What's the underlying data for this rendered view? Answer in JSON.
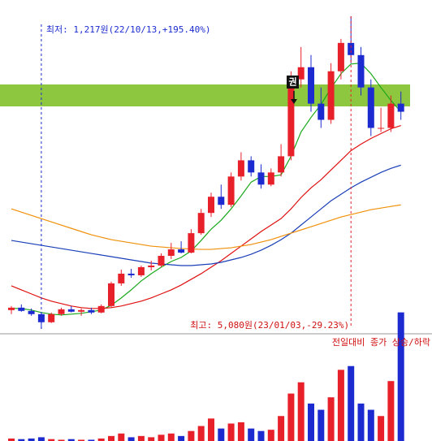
{
  "chart_data": {
    "type": "candlestick",
    "low_label": "최저: 1,217원(22/10/13,+195.40%)",
    "high_label": "최고: 5,080원(23/01/03,-29.23%)",
    "badge": "권",
    "volume_legend": "전일대비 종가 상승/하락",
    "up_color": "#e8202a",
    "down_color": "#1c2bd0",
    "ylim": [
      1100,
      5200
    ],
    "vlim": [
      0,
      800
    ],
    "open": [
      1450,
      1480,
      1440,
      1400,
      1300,
      1400,
      1460,
      1430,
      1450,
      1420,
      1500,
      1780,
      1900,
      1880,
      1980,
      2000,
      2120,
      2200,
      2160,
      2400,
      2650,
      2850,
      2750,
      3100,
      3300,
      3150,
      3000,
      3150,
      3350,
      4300,
      4450,
      4000,
      3800,
      4400,
      4750,
      4600,
      4200,
      3700,
      3700,
      4000
    ],
    "high": [
      1500,
      1520,
      1470,
      1420,
      1420,
      1480,
      1500,
      1470,
      1480,
      1520,
      1800,
      1950,
      1960,
      2000,
      2060,
      2150,
      2280,
      2300,
      2450,
      2700,
      2900,
      3000,
      3150,
      3400,
      3350,
      3250,
      3200,
      3500,
      4400,
      4700,
      4600,
      4200,
      4500,
      4800,
      5080,
      4700,
      4300,
      3950,
      4100,
      4150
    ],
    "low": [
      1400,
      1430,
      1380,
      1217,
      1290,
      1380,
      1420,
      1380,
      1400,
      1410,
      1480,
      1750,
      1850,
      1860,
      1940,
      1980,
      2080,
      2150,
      2150,
      2380,
      2600,
      2700,
      2720,
      3050,
      3100,
      2950,
      2980,
      3100,
      3300,
      4200,
      3900,
      3700,
      3750,
      4300,
      4500,
      4100,
      3600,
      3650,
      3650,
      3800
    ],
    "close": [
      1480,
      1440,
      1400,
      1300,
      1400,
      1460,
      1430,
      1450,
      1420,
      1500,
      1780,
      1900,
      1880,
      1980,
      2000,
      2120,
      2200,
      2160,
      2400,
      2650,
      2850,
      2750,
      3100,
      3300,
      3150,
      3000,
      3150,
      3350,
      4300,
      4450,
      4000,
      3800,
      4400,
      4750,
      4600,
      4200,
      3700,
      3700,
      4000,
      3900
    ],
    "volume": [
      20,
      15,
      20,
      30,
      15,
      10,
      15,
      10,
      10,
      20,
      40,
      60,
      30,
      40,
      30,
      50,
      60,
      40,
      80,
      120,
      180,
      100,
      140,
      150,
      100,
      80,
      90,
      200,
      380,
      470,
      300,
      250,
      350,
      570,
      600,
      300,
      250,
      200,
      480,
      1030
    ],
    "moving_averages": [
      {
        "color": "#1aa81a",
        "values": [
          1470,
          1470,
          1450,
          1420,
          1400,
          1390,
          1400,
          1410,
          1430,
          1450,
          1510,
          1600,
          1700,
          1810,
          1900,
          1980,
          2050,
          2100,
          2180,
          2310,
          2450,
          2560,
          2700,
          2860,
          3030,
          3100,
          3100,
          3120,
          3350,
          3650,
          3830,
          3990,
          4190,
          4370,
          4490,
          4500,
          4370,
          4200,
          4040,
          3900
        ]
      },
      {
        "color": "#e01010",
        "values": [
          1750,
          1700,
          1650,
          1600,
          1560,
          1530,
          1500,
          1480,
          1470,
          1470,
          1480,
          1500,
          1530,
          1560,
          1600,
          1650,
          1700,
          1760,
          1830,
          1900,
          1980,
          2060,
          2150,
          2240,
          2330,
          2420,
          2500,
          2580,
          2700,
          2840,
          2960,
          3060,
          3180,
          3300,
          3420,
          3500,
          3570,
          3630,
          3690,
          3730
        ]
      },
      {
        "color": "#1a3fb8",
        "values": [
          2310,
          2290,
          2270,
          2250,
          2230,
          2210,
          2190,
          2170,
          2150,
          2130,
          2110,
          2090,
          2070,
          2050,
          2030,
          2020,
          2010,
          2000,
          2000,
          2010,
          2020,
          2040,
          2070,
          2100,
          2140,
          2190,
          2250,
          2320,
          2400,
          2500,
          2600,
          2700,
          2800,
          2880,
          2960,
          3030,
          3090,
          3150,
          3200,
          3240
        ]
      },
      {
        "color": "#f0900a",
        "values": [
          2700,
          2660,
          2620,
          2580,
          2540,
          2500,
          2460,
          2420,
          2380,
          2350,
          2320,
          2300,
          2280,
          2260,
          2240,
          2230,
          2220,
          2210,
          2205,
          2200,
          2200,
          2210,
          2220,
          2240,
          2260,
          2290,
          2320,
          2360,
          2400,
          2440,
          2480,
          2520,
          2560,
          2600,
          2630,
          2660,
          2690,
          2710,
          2730,
          2750
        ]
      }
    ]
  }
}
